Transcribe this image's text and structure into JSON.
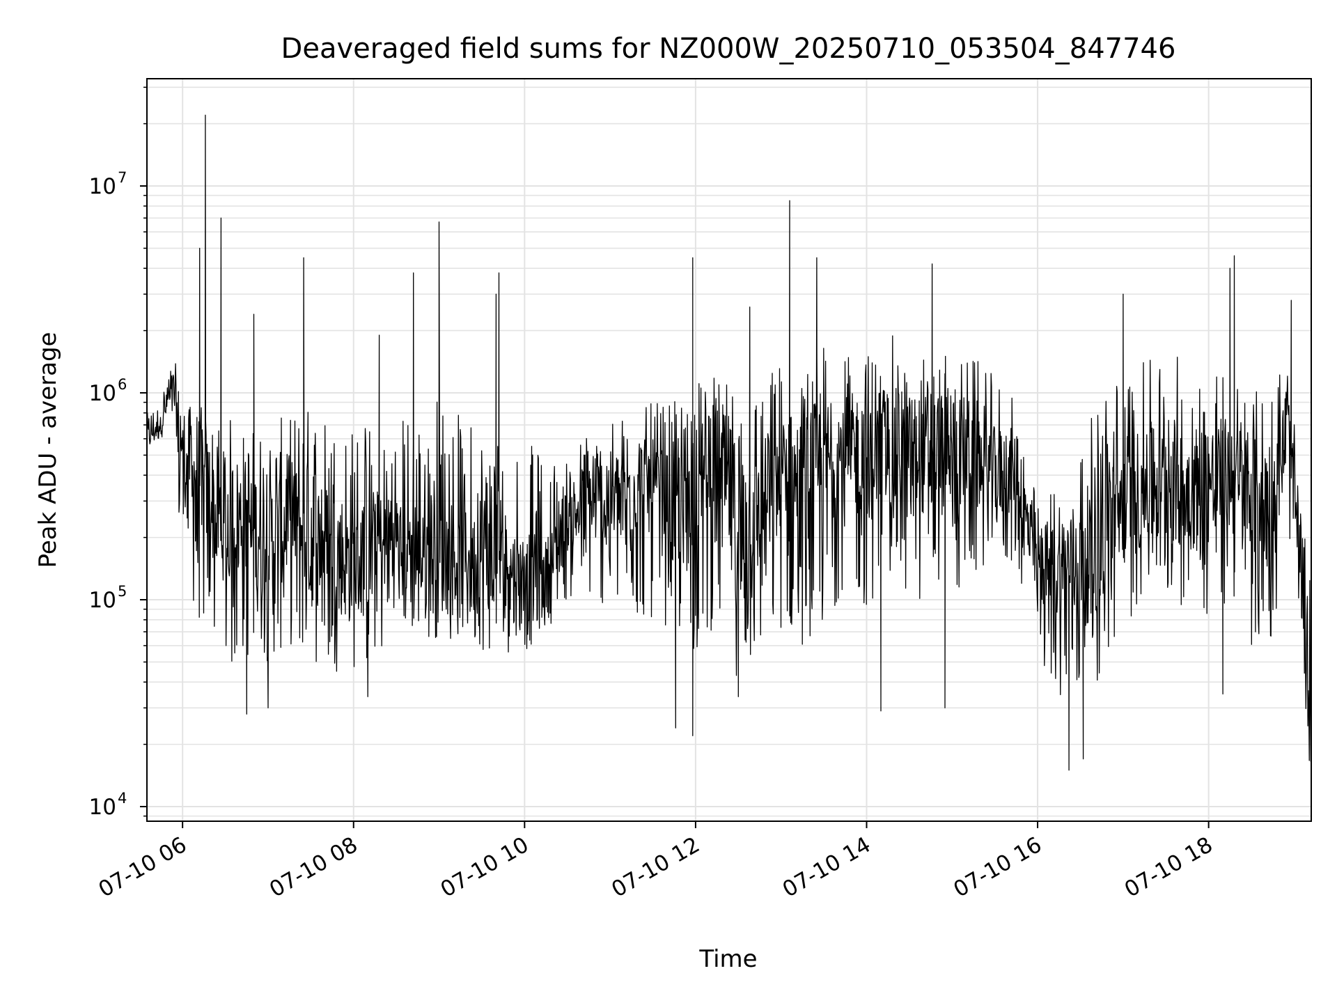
{
  "chart_data": {
    "type": "line",
    "title": "Deaveraged field sums for NZ000W_20250710_053504_847746",
    "xlabel": "Time",
    "ylabel": "Peak ADU - average",
    "yscale": "log",
    "grid": true,
    "legend": "none",
    "line_color": "#000000",
    "x_axis": {
      "range": [
        "2025-07-10 05:35",
        "2025-07-10 19:12"
      ],
      "ticks": [
        "2025-07-10 06:00",
        "2025-07-10 08:00",
        "2025-07-10 10:00",
        "2025-07-10 12:00",
        "2025-07-10 14:00",
        "2025-07-10 16:00",
        "2025-07-10 18:00"
      ],
      "tick_labels": [
        "07-10 06",
        "07-10 08",
        "07-10 10",
        "07-10 12",
        "07-10 14",
        "07-10 16",
        "07-10 18"
      ]
    },
    "y_axis": {
      "range": [
        8500,
        33000000
      ],
      "ticks": [
        10000,
        100000,
        1000000,
        10000000
      ],
      "tick_labels": [
        {
          "base": "10",
          "exp": "4"
        },
        {
          "base": "10",
          "exp": "5"
        },
        {
          "base": "10",
          "exp": "6"
        },
        {
          "base": "10",
          "exp": "7"
        }
      ]
    },
    "series": [
      {
        "x": [
          "2025-07-10 05:35",
          "2025-07-10 05:45",
          "2025-07-10 05:50",
          "2025-07-10 05:55",
          "2025-07-10 06:00",
          "2025-07-10 06:10",
          "2025-07-10 06:20",
          "2025-07-10 06:30",
          "2025-07-10 06:45",
          "2025-07-10 07:00",
          "2025-07-10 07:15",
          "2025-07-10 07:30",
          "2025-07-10 07:45",
          "2025-07-10 08:00",
          "2025-07-10 08:15",
          "2025-07-10 08:30",
          "2025-07-10 08:45",
          "2025-07-10 09:00",
          "2025-07-10 09:15",
          "2025-07-10 09:30",
          "2025-07-10 09:45",
          "2025-07-10 10:00",
          "2025-07-10 10:15",
          "2025-07-10 10:30",
          "2025-07-10 10:45",
          "2025-07-10 11:00",
          "2025-07-10 11:15",
          "2025-07-10 11:30",
          "2025-07-10 11:45",
          "2025-07-10 12:00",
          "2025-07-10 12:15",
          "2025-07-10 12:30",
          "2025-07-10 12:45",
          "2025-07-10 13:00",
          "2025-07-10 13:15",
          "2025-07-10 13:30",
          "2025-07-10 13:45",
          "2025-07-10 14:00",
          "2025-07-10 14:15",
          "2025-07-10 14:30",
          "2025-07-10 14:45",
          "2025-07-10 15:00",
          "2025-07-10 15:15",
          "2025-07-10 15:30",
          "2025-07-10 15:45",
          "2025-07-10 16:00",
          "2025-07-10 16:15",
          "2025-07-10 16:30",
          "2025-07-10 16:45",
          "2025-07-10 17:00",
          "2025-07-10 17:15",
          "2025-07-10 17:30",
          "2025-07-10 17:45",
          "2025-07-10 18:00",
          "2025-07-10 18:15",
          "2025-07-10 18:30",
          "2025-07-10 18:45",
          "2025-07-10 18:55",
          "2025-07-10 19:05",
          "2025-07-10 19:12"
        ],
        "lo": [
          500000,
          600000,
          700000,
          300000,
          150000,
          80000,
          60000,
          40000,
          50000,
          50000,
          60000,
          50000,
          45000,
          45000,
          45000,
          70000,
          65000,
          65000,
          60000,
          55000,
          55000,
          55000,
          70000,
          100000,
          100000,
          90000,
          80000,
          80000,
          70000,
          50000,
          80000,
          40000,
          50000,
          70000,
          60000,
          70000,
          120000,
          90000,
          120000,
          100000,
          100000,
          100000,
          120000,
          140000,
          150000,
          50000,
          35000,
          30000,
          40000,
          70000,
          100000,
          100000,
          90000,
          80000,
          90000,
          60000,
          50000,
          300000,
          30000,
          12000
        ],
        "mid": [
          600000,
          700000,
          900000,
          1000000,
          550000,
          450000,
          300000,
          250000,
          250000,
          200000,
          250000,
          200000,
          180000,
          150000,
          170000,
          170000,
          150000,
          170000,
          150000,
          140000,
          130000,
          120000,
          120000,
          250000,
          300000,
          300000,
          350000,
          350000,
          250000,
          500000,
          500000,
          250000,
          250000,
          400000,
          350000,
          450000,
          500000,
          550000,
          550000,
          500000,
          500000,
          550000,
          500000,
          400000,
          400000,
          150000,
          140000,
          150000,
          200000,
          300000,
          350000,
          350000,
          350000,
          350000,
          400000,
          350000,
          300000,
          700000,
          150000,
          20000
        ],
        "hi": [
          800000,
          900000,
          1500000,
          1400000,
          900000,
          900000,
          800000,
          800000,
          700000,
          700000,
          800000,
          900000,
          800000,
          700000,
          800000,
          800000,
          800000,
          1000000,
          800000,
          700000,
          700000,
          600000,
          500000,
          500000,
          700000,
          800000,
          800000,
          900000,
          900000,
          1300000,
          1200000,
          1000000,
          1200000,
          1500000,
          1400000,
          1800000,
          1500000,
          1600000,
          2000000,
          1600000,
          1600000,
          1500000,
          1500000,
          1200000,
          900000,
          300000,
          400000,
          600000,
          1000000,
          1400000,
          1400000,
          1600000,
          1500000,
          1600000,
          1300000,
          1000000,
          1200000,
          1700000,
          300000,
          120000
        ]
      }
    ],
    "spikes": [
      {
        "x": "2025-07-10 06:16",
        "y": 22000000
      },
      {
        "x": "2025-07-10 06:12",
        "y": 5000000
      },
      {
        "x": "2025-07-10 06:27",
        "y": 7000000
      },
      {
        "x": "2025-07-10 07:25",
        "y": 4500000
      },
      {
        "x": "2025-07-10 06:50",
        "y": 2400000
      },
      {
        "x": "2025-07-10 08:18",
        "y": 1900000
      },
      {
        "x": "2025-07-10 08:42",
        "y": 3800000
      },
      {
        "x": "2025-07-10 09:00",
        "y": 6700000
      },
      {
        "x": "2025-07-10 09:40",
        "y": 3000000
      },
      {
        "x": "2025-07-10 09:42",
        "y": 3800000
      },
      {
        "x": "2025-07-10 11:58",
        "y": 4500000
      },
      {
        "x": "2025-07-10 12:38",
        "y": 2600000
      },
      {
        "x": "2025-07-10 13:06",
        "y": 8500000
      },
      {
        "x": "2025-07-10 13:25",
        "y": 4500000
      },
      {
        "x": "2025-07-10 14:46",
        "y": 4200000
      },
      {
        "x": "2025-07-10 17:00",
        "y": 3000000
      },
      {
        "x": "2025-07-10 18:18",
        "y": 4600000
      },
      {
        "x": "2025-07-10 18:15",
        "y": 4000000
      },
      {
        "x": "2025-07-10 18:58",
        "y": 2800000
      }
    ],
    "dips": [
      {
        "x": "2025-07-10 06:45",
        "y": 28000
      },
      {
        "x": "2025-07-10 07:00",
        "y": 30000
      },
      {
        "x": "2025-07-10 08:10",
        "y": 34000
      },
      {
        "x": "2025-07-10 11:46",
        "y": 24000
      },
      {
        "x": "2025-07-10 11:58",
        "y": 22000
      },
      {
        "x": "2025-07-10 12:30",
        "y": 34000
      },
      {
        "x": "2025-07-10 14:10",
        "y": 29000
      },
      {
        "x": "2025-07-10 14:55",
        "y": 30000
      },
      {
        "x": "2025-07-10 16:22",
        "y": 15000
      },
      {
        "x": "2025-07-10 16:32",
        "y": 17000
      },
      {
        "x": "2025-07-10 18:10",
        "y": 35000
      },
      {
        "x": "2025-07-10 19:12",
        "y": 12000
      }
    ]
  }
}
